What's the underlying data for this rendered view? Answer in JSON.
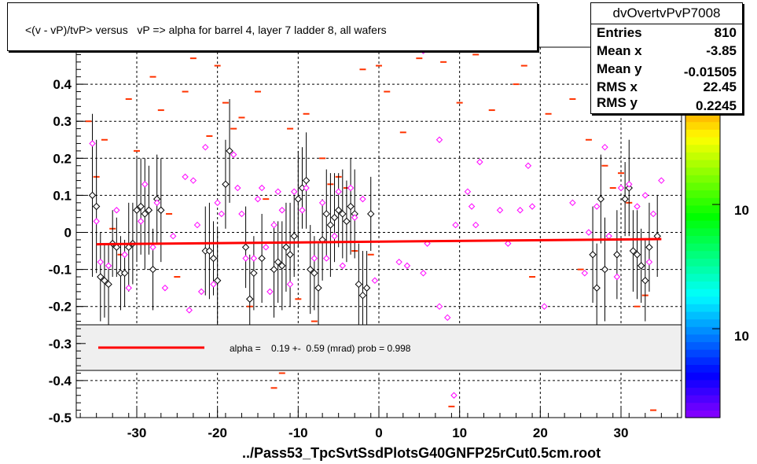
{
  "title": "<(v - vP)/tvP> versus   vP => alpha for barrel 4, layer 7 ladder 8, all wafers",
  "xlabel": "../Pass53_TpcSvtSsdPlotsG40GNFP25rCut0.5cm.root",
  "stats": {
    "name": "dvOvertvPvP7008",
    "rows": [
      {
        "k": "Entries",
        "v": "810"
      },
      {
        "k": "Mean x",
        "v": "-3.85"
      },
      {
        "k": "Mean y",
        "v": "-0.01505"
      },
      {
        "k": "RMS x",
        "v": "22.45"
      },
      {
        "k": "RMS y",
        "v": "0.2245"
      }
    ]
  },
  "legend": {
    "text": "alpha =    0.19 +-  0.59 (mrad) prob = 0.998",
    "color": "#ff0000"
  },
  "zaxis_labels": [
    "10",
    "10"
  ],
  "chart_data": {
    "type": "scatter",
    "xlim": [
      -37.5,
      37.5
    ],
    "ylim": [
      -0.5,
      0.5
    ],
    "xticks": [
      -30,
      -20,
      -10,
      0,
      10,
      20,
      30
    ],
    "xtick_labels": [
      "-30",
      "-20",
      "-10",
      "0",
      "10",
      "20",
      "30"
    ],
    "yticks": [
      -0.5,
      -0.4,
      -0.3,
      -0.2,
      -0.1,
      0,
      0.1,
      0.2,
      0.3,
      0.4,
      0.5
    ],
    "ytick_labels": [
      "-0.5",
      "-0.4",
      "-0.3",
      "-0.2",
      "-0.1",
      "0",
      "0.1",
      "0.2",
      "0.3",
      "0.4",
      "0.5"
    ],
    "grid": true,
    "fit_line": {
      "x": [
        -35,
        35
      ],
      "y": [
        -0.032,
        -0.018
      ],
      "color": "#ff0000"
    },
    "colors": {
      "profile": "#000000",
      "profile2": "#ff00ff",
      "bins": "#ff3300"
    },
    "profile_points": [
      {
        "x": -35.5,
        "y": 0.1,
        "err": 0.22
      },
      {
        "x": -35,
        "y": 0.07,
        "err": 0.18
      },
      {
        "x": -34.5,
        "y": -0.12,
        "err": 0.12
      },
      {
        "x": -34,
        "y": -0.13,
        "err": 0.1
      },
      {
        "x": -33.5,
        "y": -0.14,
        "err": 0.11
      },
      {
        "x": -33,
        "y": -0.03,
        "err": 0.09
      },
      {
        "x": -32.5,
        "y": -0.04,
        "err": 0.08
      },
      {
        "x": -32,
        "y": -0.11,
        "err": 0.1
      },
      {
        "x": -31.5,
        "y": -0.11,
        "err": 0.09
      },
      {
        "x": -31,
        "y": -0.04,
        "err": 0.12
      },
      {
        "x": -30.5,
        "y": -0.03,
        "err": 0.11
      },
      {
        "x": -30,
        "y": 0.06,
        "err": 0.14
      },
      {
        "x": -29.5,
        "y": 0.07,
        "err": 0.13
      },
      {
        "x": -29,
        "y": 0.05,
        "err": 0.15
      },
      {
        "x": -28.5,
        "y": 0.06,
        "err": 0.12
      },
      {
        "x": -28,
        "y": -0.1,
        "err": 0.11
      },
      {
        "x": -27.5,
        "y": 0.09,
        "err": 0.12
      },
      {
        "x": -27,
        "y": 0.06,
        "err": 0.14
      },
      {
        "x": -21.5,
        "y": -0.05,
        "err": 0.12
      },
      {
        "x": -21,
        "y": -0.05,
        "err": 0.13
      },
      {
        "x": -20.5,
        "y": -0.07,
        "err": 0.1
      },
      {
        "x": -20,
        "y": -0.13,
        "err": 0.14
      },
      {
        "x": -19,
        "y": 0.13,
        "err": 0.12
      },
      {
        "x": -18.5,
        "y": 0.22,
        "err": 0.14
      },
      {
        "x": -16.5,
        "y": -0.04,
        "err": 0.11
      },
      {
        "x": -16,
        "y": -0.18,
        "err": 0.12
      },
      {
        "x": -15.5,
        "y": -0.11,
        "err": 0.1
      },
      {
        "x": -14.5,
        "y": -0.07,
        "err": 0.12
      },
      {
        "x": -13,
        "y": -0.1,
        "err": 0.13
      },
      {
        "x": -12.5,
        "y": -0.08,
        "err": 0.11
      },
      {
        "x": -12,
        "y": -0.09,
        "err": 0.12
      },
      {
        "x": -11.5,
        "y": -0.04,
        "err": 0.12
      },
      {
        "x": -11,
        "y": -0.06,
        "err": 0.14
      },
      {
        "x": -10.5,
        "y": -0.01,
        "err": 0.11
      },
      {
        "x": -10,
        "y": 0.09,
        "err": 0.13
      },
      {
        "x": -9.5,
        "y": 0.12,
        "err": 0.11
      },
      {
        "x": -9,
        "y": 0.14,
        "err": 0.13
      },
      {
        "x": -8.5,
        "y": -0.1,
        "err": 0.12
      },
      {
        "x": -8,
        "y": -0.11,
        "err": 0.1
      },
      {
        "x": -7.5,
        "y": -0.15,
        "err": 0.12
      },
      {
        "x": -7,
        "y": -0.02,
        "err": 0.11
      },
      {
        "x": -6.5,
        "y": 0.05,
        "err": 0.12
      },
      {
        "x": -6,
        "y": 0.02,
        "err": 0.14
      },
      {
        "x": -5.5,
        "y": 0.04,
        "err": 0.12
      },
      {
        "x": -5,
        "y": 0.06,
        "err": 0.1
      },
      {
        "x": -4.5,
        "y": 0.05,
        "err": 0.12
      },
      {
        "x": -4,
        "y": 0.03,
        "err": 0.11
      },
      {
        "x": -3.5,
        "y": 0.07,
        "err": 0.13
      },
      {
        "x": -3,
        "y": 0.05,
        "err": 0.12
      },
      {
        "x": -2.5,
        "y": -0.14,
        "err": 0.11
      },
      {
        "x": -2,
        "y": -0.17,
        "err": 0.12
      },
      {
        "x": -1.5,
        "y": -0.15,
        "err": 0.1
      },
      {
        "x": -1,
        "y": 0.05,
        "err": 0.1
      },
      {
        "x": 26.5,
        "y": -0.06,
        "err": 0.13
      },
      {
        "x": 27,
        "y": -0.15,
        "err": 0.12
      },
      {
        "x": 27.5,
        "y": 0.09,
        "err": 0.12
      },
      {
        "x": 28,
        "y": -0.1,
        "err": 0.14
      },
      {
        "x": 29.5,
        "y": -0.06,
        "err": 0.12
      },
      {
        "x": 30.5,
        "y": 0.09,
        "err": 0.1
      },
      {
        "x": 31,
        "y": 0.12,
        "err": 0.13
      },
      {
        "x": 31.5,
        "y": -0.05,
        "err": 0.11
      },
      {
        "x": 32,
        "y": -0.06,
        "err": 0.12
      },
      {
        "x": 32.5,
        "y": -0.09,
        "err": 0.1
      },
      {
        "x": 33,
        "y": -0.13,
        "err": 0.11
      },
      {
        "x": 33.5,
        "y": -0.04,
        "err": 0.12
      },
      {
        "x": 34.5,
        "y": -0.01,
        "err": 0.11
      }
    ],
    "profile2_points": [
      {
        "x": -35.5,
        "y": 0.24
      },
      {
        "x": -35,
        "y": 0.03
      },
      {
        "x": -34.5,
        "y": -0.08
      },
      {
        "x": -33.5,
        "y": -0.09
      },
      {
        "x": -32.5,
        "y": 0.06
      },
      {
        "x": -31.5,
        "y": -0.06
      },
      {
        "x": -31,
        "y": -0.15
      },
      {
        "x": -29.5,
        "y": 0.03
      },
      {
        "x": -29,
        "y": 0.13
      },
      {
        "x": -28,
        "y": -0.04
      },
      {
        "x": -27.5,
        "y": 0.08
      },
      {
        "x": -26.5,
        "y": -0.15
      },
      {
        "x": -25.5,
        "y": -0.01
      },
      {
        "x": -24,
        "y": 0.15
      },
      {
        "x": -23.5,
        "y": -0.21
      },
      {
        "x": -23,
        "y": 0.14
      },
      {
        "x": -22.5,
        "y": 0.02
      },
      {
        "x": -22,
        "y": -0.16
      },
      {
        "x": -21.5,
        "y": 0.23
      },
      {
        "x": -20.5,
        "y": -0.14
      },
      {
        "x": -20,
        "y": 0.08
      },
      {
        "x": -19.5,
        "y": 0.05
      },
      {
        "x": -18,
        "y": 0.21
      },
      {
        "x": -17.5,
        "y": 0.12
      },
      {
        "x": -17,
        "y": 0.05
      },
      {
        "x": -16.5,
        "y": -0.07
      },
      {
        "x": -15.5,
        "y": -0.07
      },
      {
        "x": -15,
        "y": 0.09
      },
      {
        "x": -14.5,
        "y": 0.12
      },
      {
        "x": -14,
        "y": -0.04
      },
      {
        "x": -13.5,
        "y": -0.16
      },
      {
        "x": -13,
        "y": 0.02
      },
      {
        "x": -12.5,
        "y": 0.11
      },
      {
        "x": -12,
        "y": 0.06
      },
      {
        "x": -11,
        "y": -0.14
      },
      {
        "x": -10.5,
        "y": 0.11
      },
      {
        "x": -9.5,
        "y": 0.06
      },
      {
        "x": -9,
        "y": 0.12
      },
      {
        "x": -8,
        "y": -0.07
      },
      {
        "x": -7,
        "y": 0.08
      },
      {
        "x": -6.5,
        "y": -0.07
      },
      {
        "x": -5.5,
        "y": -0.01
      },
      {
        "x": -5,
        "y": 0.11
      },
      {
        "x": -4.5,
        "y": -0.09
      },
      {
        "x": -3.5,
        "y": 0.12
      },
      {
        "x": -3,
        "y": 0.04
      },
      {
        "x": -2,
        "y": 0.09
      },
      {
        "x": -0.5,
        "y": -0.13
      },
      {
        "x": 2.5,
        "y": -0.08
      },
      {
        "x": 3.5,
        "y": -0.09
      },
      {
        "x": 5.5,
        "y": -0.11
      },
      {
        "x": 5.5,
        "y": 0.49
      },
      {
        "x": 6,
        "y": -0.03
      },
      {
        "x": 7.5,
        "y": -0.2
      },
      {
        "x": 7.5,
        "y": 0.25
      },
      {
        "x": 8.5,
        "y": -0.23
      },
      {
        "x": 9.5,
        "y": 0.02
      },
      {
        "x": 9.3,
        "y": -0.44
      },
      {
        "x": 11,
        "y": 0.11
      },
      {
        "x": 11.5,
        "y": 0.07
      },
      {
        "x": 12,
        "y": 0.02
      },
      {
        "x": 12.5,
        "y": 0.19
      },
      {
        "x": 15,
        "y": 0.06
      },
      {
        "x": 16,
        "y": -0.03
      },
      {
        "x": 17.5,
        "y": 0.06
      },
      {
        "x": 18.5,
        "y": 0.18
      },
      {
        "x": 19,
        "y": 0.07
      },
      {
        "x": 20.5,
        "y": -0.2
      },
      {
        "x": 24,
        "y": 0.08
      },
      {
        "x": 25.5,
        "y": -0.11
      },
      {
        "x": 26,
        "y": 0
      },
      {
        "x": 27,
        "y": 0.07
      },
      {
        "x": 28,
        "y": 0.23
      },
      {
        "x": 28.5,
        "y": -0.01
      },
      {
        "x": 29.5,
        "y": -0.12
      },
      {
        "x": 30,
        "y": 0.12
      },
      {
        "x": 31,
        "y": 0.13
      },
      {
        "x": 32,
        "y": 0.07
      },
      {
        "x": 33,
        "y": 0.1
      },
      {
        "x": 33.5,
        "y": -0.08
      },
      {
        "x": 34,
        "y": 0.05
      },
      {
        "x": 35,
        "y": 0.14
      }
    ],
    "bins": [
      {
        "x": -36,
        "y": 0.3
      },
      {
        "x": -35,
        "y": 0.15
      },
      {
        "x": -34,
        "y": 0.25
      },
      {
        "x": -33,
        "y": 0.01
      },
      {
        "x": -32,
        "y": -0.06
      },
      {
        "x": -31,
        "y": 0.36
      },
      {
        "x": -30,
        "y": 0.22
      },
      {
        "x": -29,
        "y": -0.03
      },
      {
        "x": -28,
        "y": 0.42
      },
      {
        "x": -27,
        "y": 0.33
      },
      {
        "x": -26,
        "y": 0.05
      },
      {
        "x": -25,
        "y": -0.12
      },
      {
        "x": -24,
        "y": 0.38
      },
      {
        "x": -23,
        "y": 0.47
      },
      {
        "x": -22,
        "y": -0.03
      },
      {
        "x": -21,
        "y": 0.26
      },
      {
        "x": -20,
        "y": 0.45
      },
      {
        "x": -19,
        "y": 0.35
      },
      {
        "x": -18,
        "y": 0.28
      },
      {
        "x": -17,
        "y": 0.31
      },
      {
        "x": -16,
        "y": -0.2
      },
      {
        "x": -15,
        "y": 0.38
      },
      {
        "x": -14,
        "y": 0.09
      },
      {
        "x": -13,
        "y": -0.42
      },
      {
        "x": -12,
        "y": -0.38
      },
      {
        "x": -11,
        "y": 0.28
      },
      {
        "x": -10,
        "y": -0.18
      },
      {
        "x": -9,
        "y": 0.32
      },
      {
        "x": -8,
        "y": -0.24
      },
      {
        "x": -7,
        "y": 0.2
      },
      {
        "x": -6,
        "y": 0.13
      },
      {
        "x": -5,
        "y": 0.15
      },
      {
        "x": -4,
        "y": 0.12
      },
      {
        "x": -3,
        "y": -0.05
      },
      {
        "x": -2,
        "y": 0.44
      },
      {
        "x": -1,
        "y": -0.06
      },
      {
        "x": 0,
        "y": 0.45
      },
      {
        "x": 1,
        "y": 0.38
      },
      {
        "x": 3,
        "y": 0.27
      },
      {
        "x": 5,
        "y": 0.47
      },
      {
        "x": 8,
        "y": 0.46
      },
      {
        "x": 9,
        "y": -0.47
      },
      {
        "x": 10,
        "y": 0.35
      },
      {
        "x": 12,
        "y": 0.48
      },
      {
        "x": 14,
        "y": 0.33
      },
      {
        "x": 17,
        "y": 0.4
      },
      {
        "x": 18,
        "y": 0.45
      },
      {
        "x": 19,
        "y": -0.12
      },
      {
        "x": 21,
        "y": 0.32
      },
      {
        "x": 24,
        "y": 0.36
      },
      {
        "x": 25,
        "y": -0.1
      },
      {
        "x": 26,
        "y": 0.25
      },
      {
        "x": 27,
        "y": 0.33
      },
      {
        "x": 28,
        "y": 0.18
      },
      {
        "x": 29,
        "y": 0.12
      },
      {
        "x": 30,
        "y": 0.16
      },
      {
        "x": 31,
        "y": 0.08
      },
      {
        "x": 32,
        "y": -0.2
      },
      {
        "x": 33,
        "y": -0.17
      },
      {
        "x": 34,
        "y": -0.48
      }
    ]
  }
}
